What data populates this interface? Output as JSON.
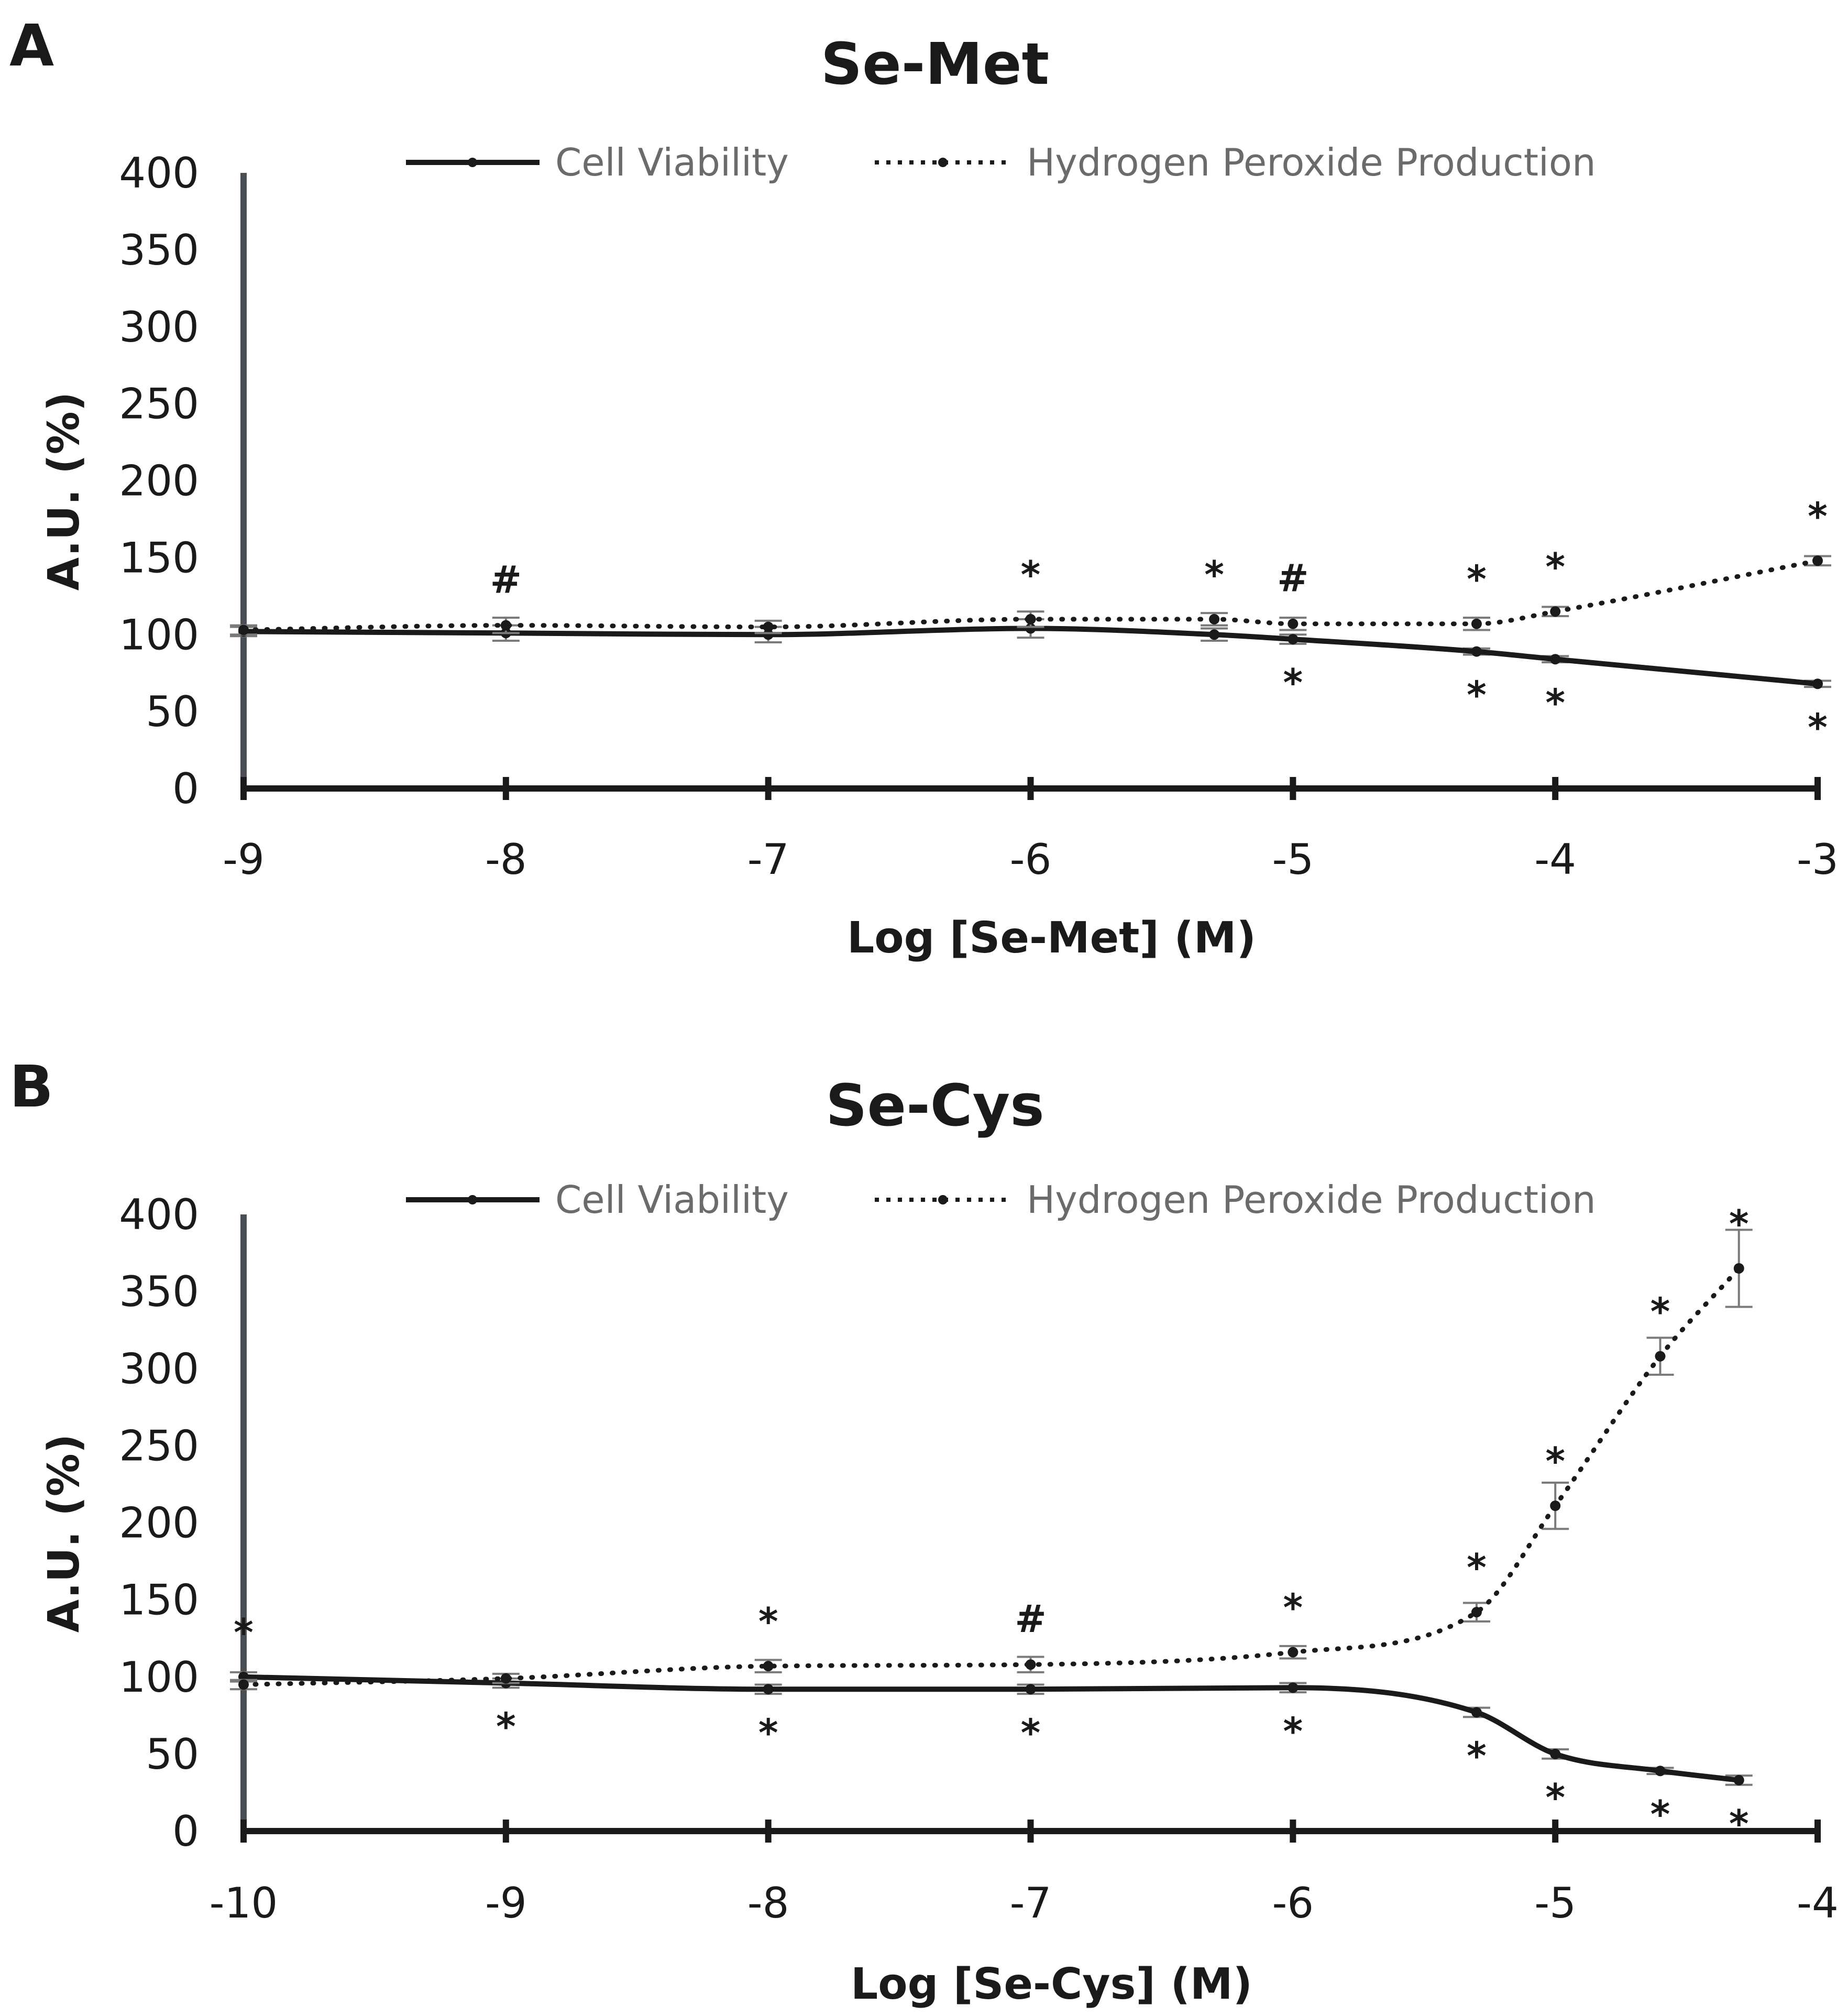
{
  "panels": [
    {
      "letter": "A"
    },
    {
      "letter": "B"
    }
  ],
  "chart_data": [
    {
      "type": "line",
      "title": "Se-Met",
      "xlabel": "Log [Se-Met] (M)",
      "ylabel": "A.U. (%)",
      "xlim": [
        -9,
        -3
      ],
      "ylim": [
        0,
        400
      ],
      "xticks": [
        -9,
        -8,
        -7,
        -6,
        -5,
        -4,
        -3
      ],
      "xtick_labels": [
        "-9",
        "-8",
        "-7",
        "-6",
        "-5",
        "-4",
        "-3"
      ],
      "yticks": [
        0,
        50,
        100,
        150,
        200,
        250,
        300,
        350,
        400
      ],
      "ytick_labels": [
        "0",
        "50",
        "100",
        "150",
        "200",
        "250",
        "300",
        "350",
        "400"
      ],
      "legend": {
        "position": "top",
        "entries": [
          "Cell Viability",
          "Hydrogen Peroxide Production"
        ]
      },
      "grid": false,
      "series": [
        {
          "name": "Cell Viability",
          "style": "solid",
          "x": [
            -9,
            -8,
            -7,
            -6,
            -5.3,
            -5,
            -4.3,
            -4,
            -3
          ],
          "y": [
            102,
            101,
            100,
            104,
            100,
            97,
            89,
            84,
            68
          ],
          "err": [
            3,
            5,
            5,
            6,
            4,
            3,
            2,
            2,
            2
          ]
        },
        {
          "name": "Hydrogen Peroxide Production",
          "style": "dotted",
          "x": [
            -9,
            -8,
            -7,
            -6,
            -5.3,
            -5,
            -4.3,
            -4,
            -3
          ],
          "y": [
            103,
            106,
            105,
            110,
            110,
            107,
            107,
            115,
            148
          ],
          "err": [
            3,
            5,
            4,
            5,
            4,
            4,
            4,
            3,
            3
          ]
        }
      ],
      "annotations": [
        {
          "x": -8,
          "y": 106,
          "text": "#",
          "pos": "above"
        },
        {
          "x": -6,
          "y": 110,
          "text": "*",
          "pos": "above"
        },
        {
          "x": -5.3,
          "y": 110,
          "text": "*",
          "pos": "above"
        },
        {
          "x": -5,
          "y": 107,
          "text": "#",
          "pos": "above"
        },
        {
          "x": -5,
          "y": 97,
          "text": "*",
          "pos": "below"
        },
        {
          "x": -4.3,
          "y": 107,
          "text": "*",
          "pos": "above"
        },
        {
          "x": -4.3,
          "y": 89,
          "text": "*",
          "pos": "below"
        },
        {
          "x": -4,
          "y": 115,
          "text": "*",
          "pos": "above"
        },
        {
          "x": -4,
          "y": 84,
          "text": "*",
          "pos": "below"
        },
        {
          "x": -3,
          "y": 148,
          "text": "*",
          "pos": "above"
        },
        {
          "x": -3,
          "y": 68,
          "text": "*",
          "pos": "below"
        }
      ]
    },
    {
      "type": "line",
      "title": "Se-Cys",
      "xlabel": "Log [Se-Cys] (M)",
      "ylabel": "A.U. (%)",
      "xlim": [
        -10,
        -4
      ],
      "ylim": [
        0,
        400
      ],
      "xticks": [
        -10,
        -9,
        -8,
        -7,
        -6,
        -5,
        -4
      ],
      "xtick_labels": [
        "-10",
        "-9",
        "-8",
        "-7",
        "-6",
        "-5",
        "-4"
      ],
      "yticks": [
        0,
        50,
        100,
        150,
        200,
        250,
        300,
        350,
        400
      ],
      "ytick_labels": [
        "0",
        "50",
        "100",
        "150",
        "200",
        "250",
        "300",
        "350",
        "400"
      ],
      "legend": {
        "position": "top",
        "entries": [
          "Cell Viability",
          "Hydrogen Peroxide Production"
        ]
      },
      "grid": false,
      "series": [
        {
          "name": "Cell Viability",
          "style": "solid",
          "x": [
            -10,
            -9,
            -8,
            -7,
            -6,
            -5.3,
            -5,
            -4.6,
            -4.3
          ],
          "y": [
            100,
            96,
            92,
            92,
            93,
            77,
            50,
            39,
            33
          ],
          "err": [
            3,
            3,
            3,
            3,
            3,
            3,
            3,
            2,
            3
          ]
        },
        {
          "name": "Hydrogen Peroxide Production",
          "style": "dotted",
          "x": [
            -10,
            -9,
            -8,
            -7,
            -6,
            -5.3,
            -5,
            -4.6,
            -4.3
          ],
          "y": [
            95,
            99,
            107,
            108,
            116,
            142,
            211,
            308,
            365
          ],
          "err": [
            3,
            3,
            4,
            5,
            4,
            6,
            15,
            12,
            25
          ]
        }
      ],
      "annotations": [
        {
          "x": -10,
          "y": 100,
          "text": "*",
          "pos": "above"
        },
        {
          "x": -9,
          "y": 96,
          "text": "*",
          "pos": "below"
        },
        {
          "x": -8,
          "y": 107,
          "text": "*",
          "pos": "above"
        },
        {
          "x": -8,
          "y": 92,
          "text": "*",
          "pos": "below"
        },
        {
          "x": -7,
          "y": 108,
          "text": "#",
          "pos": "above"
        },
        {
          "x": -7,
          "y": 92,
          "text": "*",
          "pos": "below"
        },
        {
          "x": -6,
          "y": 116,
          "text": "*",
          "pos": "above"
        },
        {
          "x": -6,
          "y": 93,
          "text": "*",
          "pos": "below"
        },
        {
          "x": -5.3,
          "y": 142,
          "text": "*",
          "pos": "above"
        },
        {
          "x": -5.3,
          "y": 77,
          "text": "*",
          "pos": "below"
        },
        {
          "x": -5,
          "y": 211,
          "text": "*",
          "pos": "above"
        },
        {
          "x": -5,
          "y": 50,
          "text": "*",
          "pos": "below"
        },
        {
          "x": -4.6,
          "y": 308,
          "text": "*",
          "pos": "above"
        },
        {
          "x": -4.6,
          "y": 39,
          "text": "*",
          "pos": "below"
        },
        {
          "x": -4.3,
          "y": 365,
          "text": "*",
          "pos": "above"
        },
        {
          "x": -4.3,
          "y": 33,
          "text": "*",
          "pos": "below"
        }
      ]
    }
  ]
}
